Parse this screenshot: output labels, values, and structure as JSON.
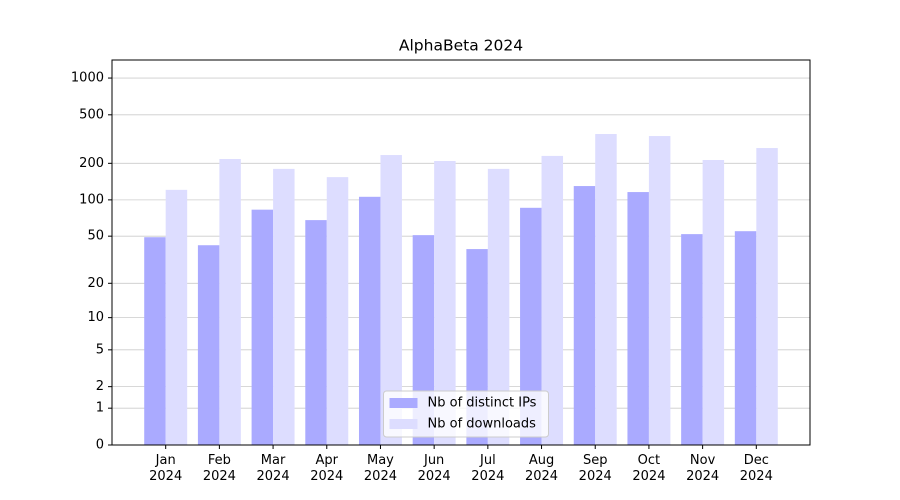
{
  "chart_data": {
    "type": "bar",
    "title": "AlphaBeta 2024",
    "categories": [
      "Jan\n2024",
      "Feb\n2024",
      "Mar\n2024",
      "Apr\n2024",
      "May\n2024",
      "Jun\n2024",
      "Jul\n2024",
      "Aug\n2024",
      "Sep\n2024",
      "Oct\n2024",
      "Nov\n2024",
      "Dec\n2024"
    ],
    "series": [
      {
        "name": "Nb of distinct IPs",
        "color": "#aaaaff",
        "values": [
          49,
          42,
          83,
          68,
          106,
          51,
          39,
          86,
          130,
          116,
          52,
          55
        ]
      },
      {
        "name": "Nb of downloads",
        "color": "#ddddff",
        "values": [
          121,
          217,
          180,
          154,
          234,
          209,
          180,
          230,
          348,
          335,
          213,
          267
        ]
      }
    ],
    "y_scale": "log1p",
    "ylim": [
      0,
      1405
    ],
    "yticks": [
      0,
      1,
      2,
      5,
      10,
      20,
      50,
      100,
      200,
      500,
      1000
    ],
    "grid": true,
    "legend": "lower center"
  }
}
